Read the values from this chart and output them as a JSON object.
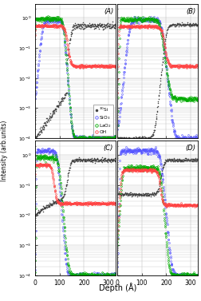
{
  "panels": [
    "A",
    "B",
    "C",
    "D"
  ],
  "ylim": [
    0.0001,
    3
  ],
  "xlim": [
    0,
    330
  ],
  "xticks": [
    0,
    100,
    200,
    300
  ],
  "xlabel": "Depth (Å)",
  "ylabel": "Intensity (arb.units)",
  "colors": {
    "Si": "#444444",
    "SiO3": "#5555ff",
    "LaO2": "#00aa00",
    "OH": "#ff4444"
  },
  "background": "#ffffff",
  "grid_color": "#bbbbbb"
}
